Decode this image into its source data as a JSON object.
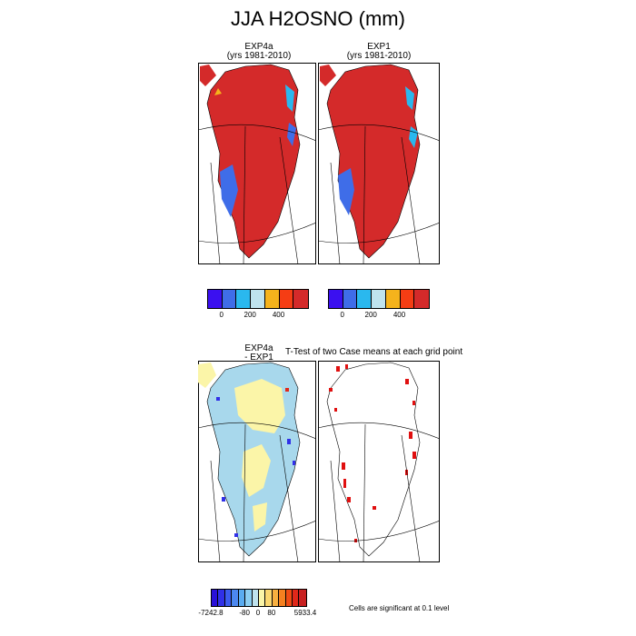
{
  "title": "JJA H2OSNO (mm)",
  "panels": {
    "top_left": {
      "line1": "EXP4a",
      "line2": "(yrs 1981-2010)"
    },
    "top_right": {
      "line1": "EXP1",
      "line2": "(yrs 1981-2010)"
    },
    "bottom_left": {
      "line1": "EXP4a",
      "line2": "- EXP1"
    },
    "bottom_right": {
      "line1": "T-Test of two Case means at each grid point"
    }
  },
  "colorbar_top": {
    "colors": [
      "#3b10f0",
      "#3f6de8",
      "#2ab8ee",
      "#bfe3ee",
      "#f5b31c",
      "#f53d14",
      "#d42a2a"
    ],
    "tick_labels": [
      "0",
      "200",
      "400"
    ]
  },
  "colorbar_bottom": {
    "colors": [
      "#2a10d8",
      "#3030e8",
      "#3c5cf0",
      "#4c88f0",
      "#5aacf0",
      "#8ccff2",
      "#bfe3ee",
      "#fbf5a8",
      "#fbd870",
      "#f8b040",
      "#f58020",
      "#f04c14",
      "#e0281a",
      "#c82020"
    ],
    "tick_labels": [
      "-7242.8",
      "-80",
      "0",
      "80",
      "5933.4"
    ]
  },
  "significance_note": "Cells are significant at 0.1 level",
  "palette": {
    "snow_high": "#d42a2a",
    "snow_mid": "#3f6de8",
    "snow_light": "#2ab8ee",
    "diff_base": "#a8d8ec",
    "diff_pos": "#fbf5a8",
    "sig": "#e01010"
  }
}
